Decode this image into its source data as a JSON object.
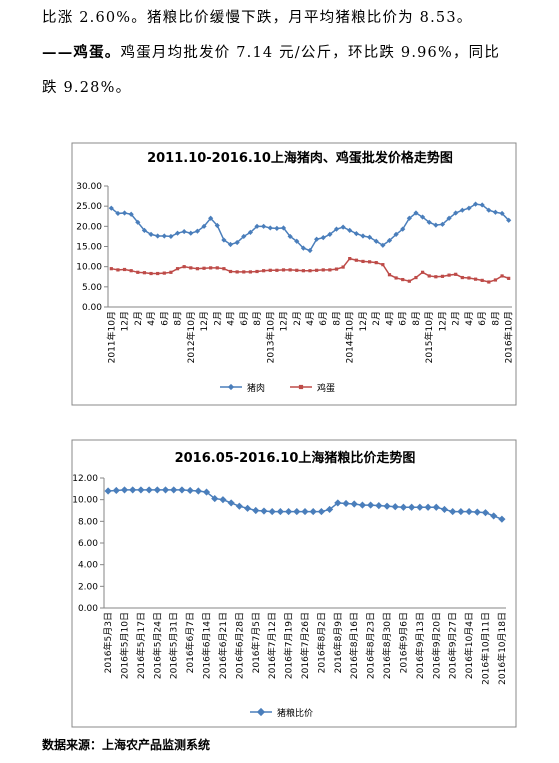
{
  "text_lines": [
    [
      "比涨 2.60%。猪粮比价缓慢下跌，月平均猪粮比价为 8.53。"
    ],
    [
      "——鸡蛋。",
      "鸡蛋月均批发价 7.14 元/公斤，环比跌 9.96%，同比"
    ],
    [
      "跌 9.28%。"
    ]
  ],
  "source": "数据来源：上海农产品监测系统",
  "chart_data": [
    {
      "type": "line",
      "title": "2011.10-2016.10上海猪肉、鸡蛋批发价格走势图",
      "categories": [
        "2011年10月",
        null,
        "12月",
        null,
        "2月",
        null,
        "4月",
        null,
        "6月",
        null,
        "8月",
        null,
        "2012年10月",
        null,
        "12月",
        null,
        "2月",
        null,
        "4月",
        null,
        "6月",
        null,
        "8月",
        null,
        "2013年10月",
        null,
        "12月",
        null,
        "2月",
        null,
        "4月",
        null,
        "6月",
        null,
        "8月",
        null,
        "2014年10月",
        null,
        "12月",
        null,
        "2月",
        null,
        "4月",
        null,
        "6月",
        null,
        "8月",
        null,
        "2015年10月",
        null,
        "12月",
        null,
        "2月",
        null,
        "4月",
        null,
        "6月",
        null,
        "8月",
        null,
        "2016年10月"
      ],
      "series": [
        {
          "name": "猪肉",
          "color": "#4a7ebb",
          "marker": "diamond",
          "values": [
            24.5,
            23.2,
            23.3,
            23.0,
            21.0,
            19.0,
            18.0,
            17.6,
            17.6,
            17.5,
            18.3,
            18.7,
            18.3,
            18.8,
            20.0,
            22.0,
            20.2,
            16.6,
            15.5,
            16.0,
            17.5,
            18.5,
            20.0,
            20.0,
            19.6,
            19.5,
            19.6,
            17.5,
            16.3,
            14.6,
            14.0,
            16.8,
            17.2,
            18.0,
            19.3,
            19.8,
            19.0,
            18.2,
            17.6,
            17.3,
            16.3,
            15.3,
            16.5,
            18.0,
            19.3,
            22.0,
            23.3,
            22.3,
            21.0,
            20.3,
            20.5,
            22.0,
            23.3,
            24.0,
            24.5,
            25.5,
            25.3,
            24.0,
            23.5,
            23.2,
            21.5
          ]
        },
        {
          "name": "鸡蛋",
          "color": "#be4b48",
          "marker": "square",
          "values": [
            9.5,
            9.2,
            9.3,
            9.0,
            8.6,
            8.5,
            8.3,
            8.3,
            8.4,
            8.6,
            9.5,
            10.0,
            9.7,
            9.5,
            9.6,
            9.7,
            9.7,
            9.5,
            8.8,
            8.7,
            8.7,
            8.7,
            8.8,
            9.0,
            9.1,
            9.1,
            9.2,
            9.2,
            9.1,
            9.0,
            9.0,
            9.1,
            9.2,
            9.2,
            9.4,
            9.9,
            12.0,
            11.6,
            11.3,
            11.2,
            11.0,
            10.5,
            8.0,
            7.2,
            6.8,
            6.4,
            7.3,
            8.6,
            7.7,
            7.5,
            7.6,
            7.9,
            8.1,
            7.3,
            7.2,
            6.9,
            6.6,
            6.2,
            6.7,
            7.7,
            7.1
          ]
        }
      ],
      "ylim": [
        0,
        30
      ],
      "yticks": [
        {
          "value": 0,
          "label": "0.00"
        },
        {
          "value": 5,
          "label": "5.00"
        },
        {
          "value": 10,
          "label": "10.00"
        },
        {
          "value": 15,
          "label": "15.00"
        },
        {
          "value": 20,
          "label": "20.00"
        },
        {
          "value": 25,
          "label": "25.00"
        },
        {
          "value": 30,
          "label": "30.00"
        }
      ],
      "grid": false,
      "legend": "bottom"
    },
    {
      "type": "line",
      "title": "2016.05-2016.10上海猪粮比价走势图",
      "categories": [
        "2016年5月3日",
        null,
        "2016年5月10日",
        null,
        "2016年5月17日",
        null,
        "2016年5月24日",
        null,
        "2016年5月31日",
        null,
        "2016年6月7日",
        null,
        "2016年6月14日",
        null,
        "2016年6月21日",
        null,
        "2016年6月28日",
        null,
        "2016年7月5日",
        null,
        "2016年7月12日",
        null,
        "2016年7月19日",
        null,
        "2016年7月26日",
        null,
        "2016年8月2日",
        null,
        "2016年8月9日",
        null,
        "2016年8月16日",
        null,
        "2016年8月23日",
        null,
        "2016年8月30日",
        null,
        "2016年9月6日",
        null,
        "2016年9月13日",
        null,
        "2016年9月20日",
        null,
        "2016年9月27日",
        null,
        "2016年10月4日",
        null,
        "2016年10月11日",
        null,
        "2016年10月18日"
      ],
      "series": [
        {
          "name": "猪粮比价",
          "color": "#4a7ebb",
          "marker": "diamond",
          "values": [
            10.8,
            10.85,
            10.9,
            10.9,
            10.9,
            10.9,
            10.9,
            10.9,
            10.9,
            10.9,
            10.85,
            10.8,
            10.7,
            10.1,
            10.0,
            9.7,
            9.4,
            9.2,
            9.0,
            8.95,
            8.9,
            8.9,
            8.9,
            8.9,
            8.9,
            8.9,
            8.9,
            9.1,
            9.7,
            9.65,
            9.6,
            9.5,
            9.5,
            9.45,
            9.4,
            9.35,
            9.3,
            9.3,
            9.3,
            9.3,
            9.3,
            9.1,
            8.9,
            8.9,
            8.9,
            8.85,
            8.8,
            8.5,
            8.2
          ]
        }
      ],
      "ylim": [
        0,
        12
      ],
      "yticks": [
        {
          "value": 0,
          "label": "0.00"
        },
        {
          "value": 2,
          "label": "2.00"
        },
        {
          "value": 4,
          "label": "4.00"
        },
        {
          "value": 6,
          "label": "6.00"
        },
        {
          "value": 8,
          "label": "8.00"
        },
        {
          "value": 10,
          "label": "10.00"
        },
        {
          "value": 12,
          "label": "12.00"
        }
      ],
      "grid": false,
      "legend": "bottom"
    }
  ]
}
